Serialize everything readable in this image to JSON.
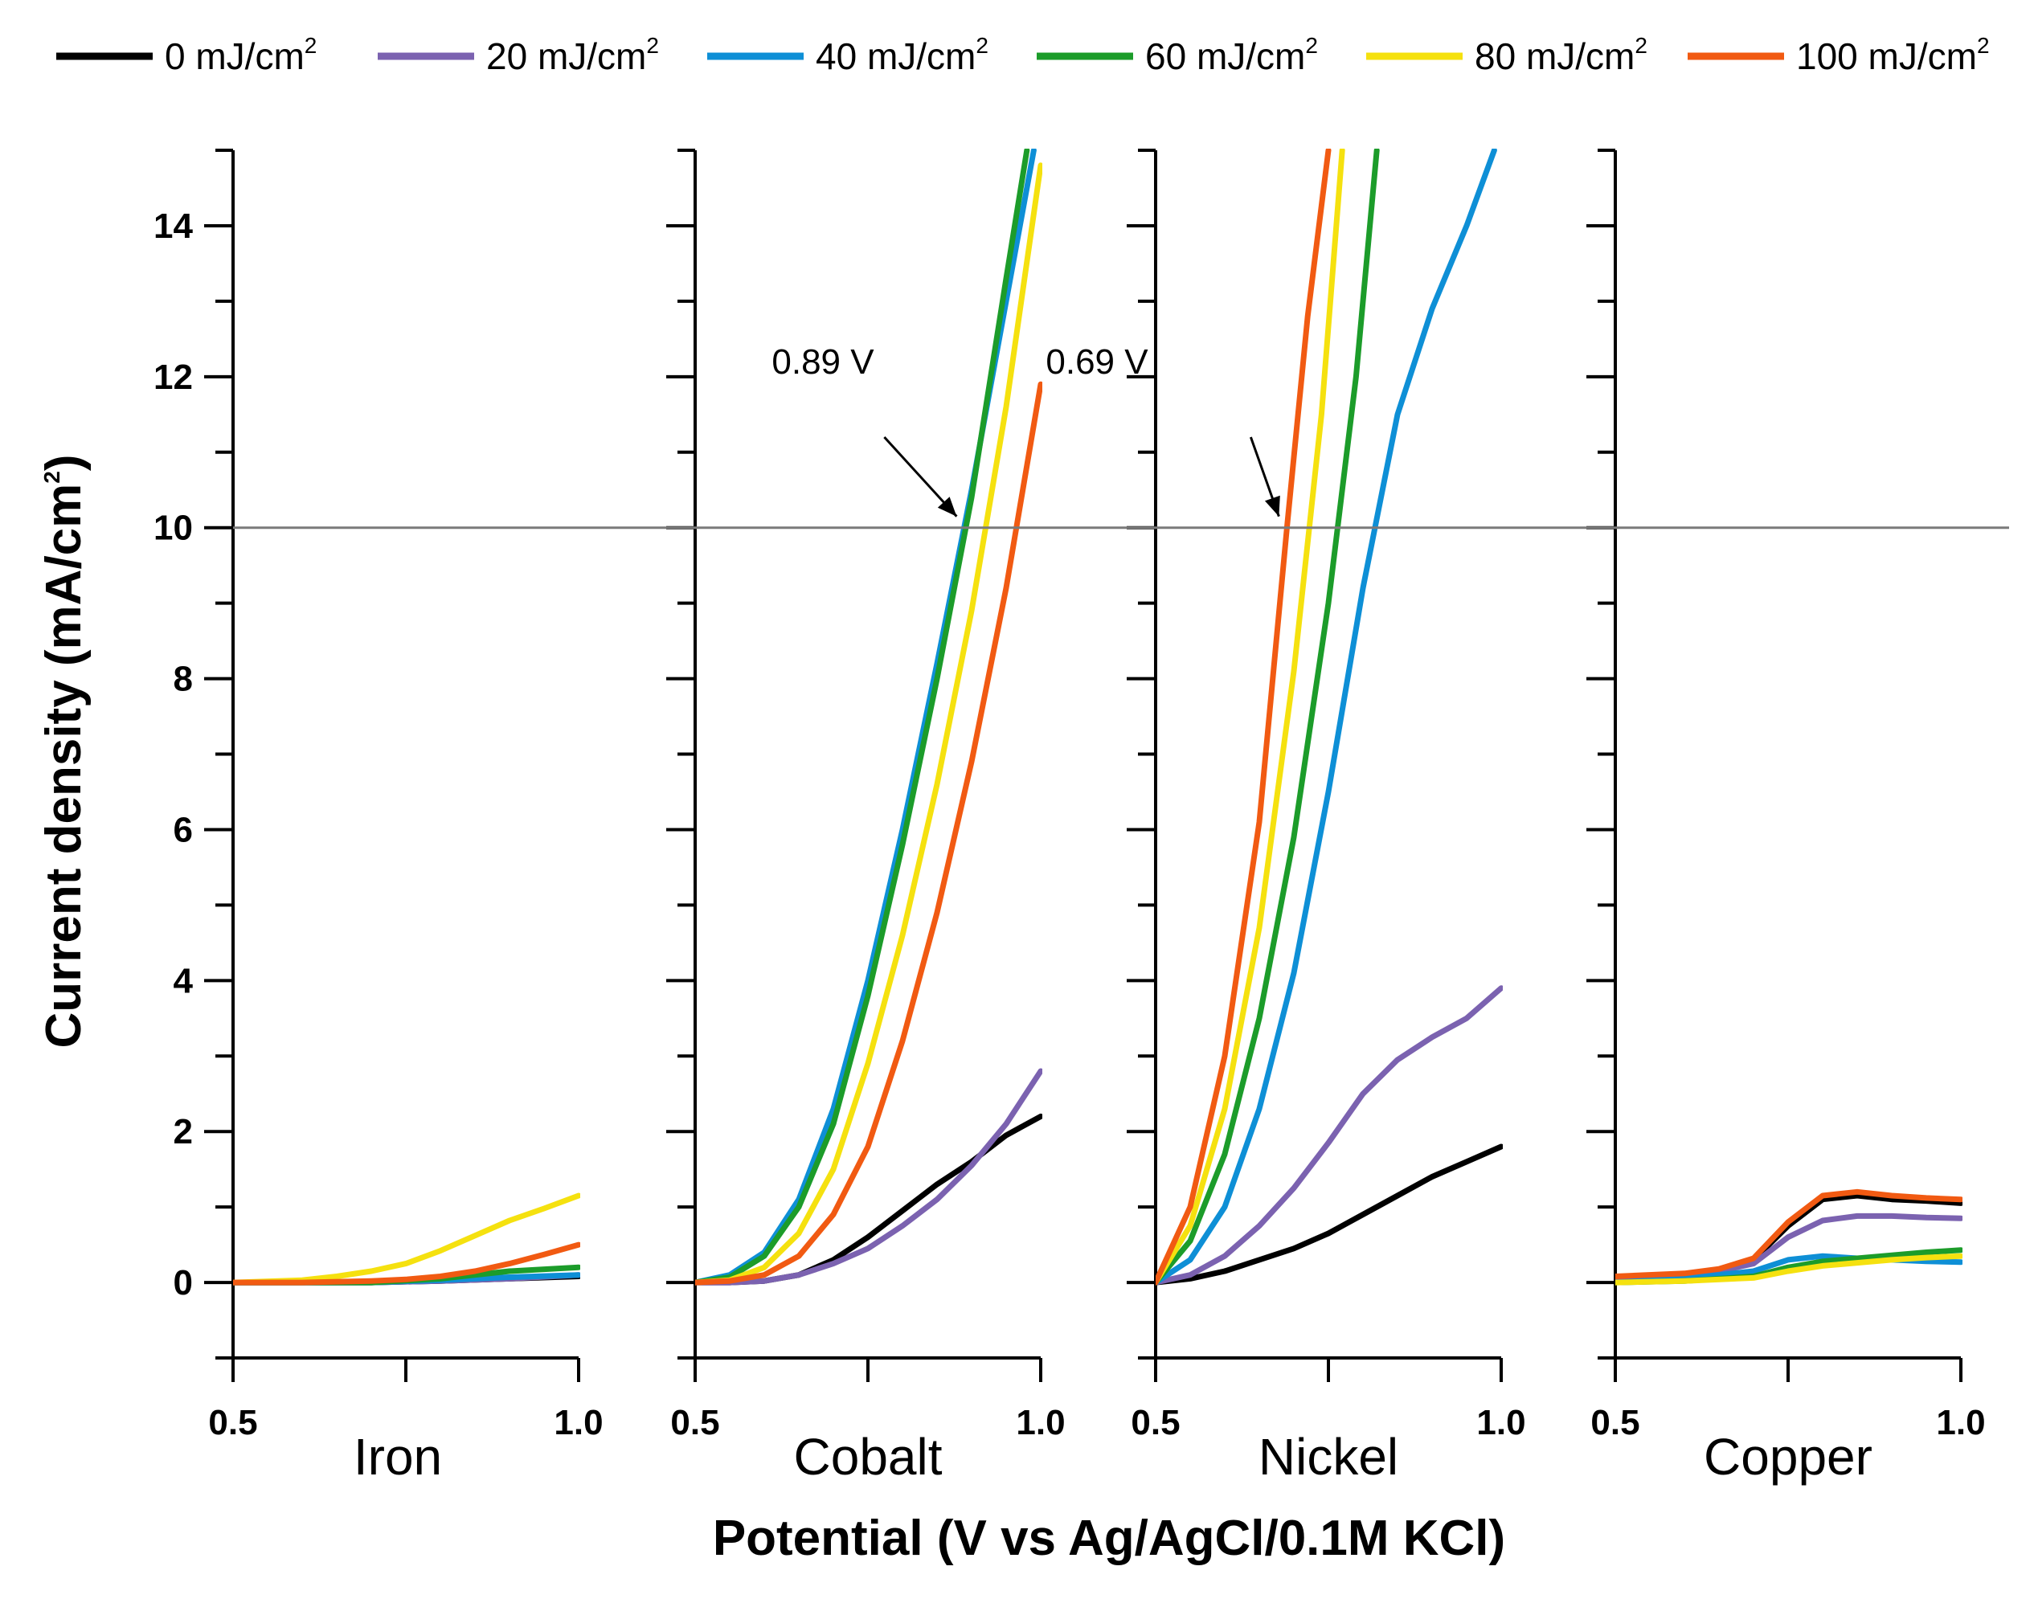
{
  "chart_data": {
    "type": "line",
    "ylabel": "Current density (mA/cm",
    "ylabel_sup": "2",
    "ylabel_close": ")",
    "xlabel": "Potential (V vs Ag/AgCl/0.1M KCl)",
    "ylim": [
      -1,
      15
    ],
    "xlim": [
      0.5,
      1.0
    ],
    "yticks": [
      "0",
      "2",
      "4",
      "6",
      "8",
      "10",
      "12",
      "14"
    ],
    "xtick_left": "0.5",
    "xtick_right": "1.0",
    "reference_line": 10,
    "legend": [
      {
        "name": "0 mJ/cm",
        "sup": "2",
        "color": "#000000"
      },
      {
        "name": "20 mJ/cm",
        "sup": "2",
        "color": "#7b62b0"
      },
      {
        "name": "40 mJ/cm",
        "sup": "2",
        "color": "#0e8fd6"
      },
      {
        "name": "60 mJ/cm",
        "sup": "2",
        "color": "#1c9c2a"
      },
      {
        "name": "80 mJ/cm",
        "sup": "2",
        "color": "#f5e10f"
      },
      {
        "name": "100 mJ/cm",
        "sup": "2",
        "color": "#f15a12"
      }
    ],
    "panels": [
      {
        "name": "Iron",
        "series": [
          {
            "name": "0 mJ/cm2",
            "x": [
              0.5,
              0.6,
              0.7,
              0.8,
              0.9,
              1.0
            ],
            "y": [
              0,
              0,
              0,
              0.02,
              0.05,
              0.08
            ]
          },
          {
            "name": "20 mJ/cm2",
            "x": [
              0.5,
              0.6,
              0.7,
              0.8,
              0.9,
              1.0
            ],
            "y": [
              0,
              0,
              0,
              0.02,
              0.05,
              0.1
            ]
          },
          {
            "name": "40 mJ/cm2",
            "x": [
              0.5,
              0.6,
              0.7,
              0.8,
              0.9,
              1.0
            ],
            "y": [
              0,
              0,
              0,
              0.03,
              0.07,
              0.1
            ]
          },
          {
            "name": "60 mJ/cm2",
            "x": [
              0.5,
              0.6,
              0.7,
              0.8,
              0.9,
              1.0
            ],
            "y": [
              0,
              0,
              0,
              0.05,
              0.15,
              0.2
            ]
          },
          {
            "name": "80 mJ/cm2",
            "x": [
              0.5,
              0.6,
              0.65,
              0.7,
              0.75,
              0.8,
              0.85,
              0.9,
              0.95,
              1.0
            ],
            "y": [
              0,
              0.03,
              0.08,
              0.15,
              0.25,
              0.42,
              0.62,
              0.82,
              0.98,
              1.15
            ]
          },
          {
            "name": "100 mJ/cm2",
            "x": [
              0.5,
              0.6,
              0.7,
              0.75,
              0.8,
              0.85,
              0.9,
              0.95,
              1.0
            ],
            "y": [
              0,
              0,
              0.02,
              0.04,
              0.08,
              0.15,
              0.25,
              0.37,
              0.5
            ]
          }
        ]
      },
      {
        "name": "Cobalt",
        "annotation": {
          "label": "0.89 V",
          "x": 0.89,
          "y": 10
        },
        "series": [
          {
            "name": "0 mJ/cm2",
            "x": [
              0.5,
              0.55,
              0.6,
              0.65,
              0.7,
              0.75,
              0.8,
              0.85,
              0.9,
              0.95,
              1.0
            ],
            "y": [
              0,
              0,
              0.02,
              0.1,
              0.3,
              0.6,
              0.95,
              1.3,
              1.6,
              1.95,
              2.2
            ]
          },
          {
            "name": "20 mJ/cm2",
            "x": [
              0.5,
              0.55,
              0.6,
              0.65,
              0.7,
              0.75,
              0.8,
              0.85,
              0.9,
              0.95,
              1.0
            ],
            "y": [
              0,
              0,
              0.02,
              0.1,
              0.25,
              0.45,
              0.75,
              1.1,
              1.55,
              2.1,
              2.8
            ]
          },
          {
            "name": "40 mJ/cm2",
            "x": [
              0.5,
              0.55,
              0.6,
              0.65,
              0.7,
              0.75,
              0.8,
              0.85,
              0.9,
              0.95,
              0.99
            ],
            "y": [
              0,
              0.1,
              0.4,
              1.1,
              2.3,
              4.0,
              6.0,
              8.2,
              10.5,
              13.0,
              15
            ]
          },
          {
            "name": "60 mJ/cm2",
            "x": [
              0.5,
              0.55,
              0.6,
              0.65,
              0.7,
              0.75,
              0.8,
              0.85,
              0.9,
              0.95,
              0.98
            ],
            "y": [
              0,
              0.07,
              0.35,
              1.0,
              2.1,
              3.8,
              5.8,
              8.0,
              10.4,
              13.3,
              15
            ]
          },
          {
            "name": "80 mJ/cm2",
            "x": [
              0.5,
              0.55,
              0.6,
              0.65,
              0.7,
              0.75,
              0.8,
              0.85,
              0.9,
              0.95,
              1.0
            ],
            "y": [
              0,
              0.03,
              0.2,
              0.65,
              1.5,
              2.9,
              4.6,
              6.6,
              8.9,
              11.6,
              14.8
            ]
          },
          {
            "name": "100 mJ/cm2",
            "x": [
              0.5,
              0.55,
              0.6,
              0.65,
              0.7,
              0.75,
              0.8,
              0.85,
              0.9,
              0.95,
              1.0
            ],
            "y": [
              0,
              0.02,
              0.1,
              0.35,
              0.9,
              1.8,
              3.2,
              4.9,
              6.9,
              9.2,
              11.9
            ]
          }
        ]
      },
      {
        "name": "Nickel",
        "annotation": {
          "label": "0.69 V",
          "x": 0.69,
          "y": 10
        },
        "series": [
          {
            "name": "0 mJ/cm2",
            "x": [
              0.5,
              0.55,
              0.6,
              0.65,
              0.7,
              0.75,
              0.8,
              0.85,
              0.9,
              0.95,
              1.0
            ],
            "y": [
              0,
              0.05,
              0.15,
              0.3,
              0.45,
              0.65,
              0.9,
              1.15,
              1.4,
              1.6,
              1.8
            ]
          },
          {
            "name": "20 mJ/cm2",
            "x": [
              0.5,
              0.55,
              0.6,
              0.65,
              0.7,
              0.75,
              0.8,
              0.85,
              0.9,
              0.95,
              1.0
            ],
            "y": [
              0,
              0.1,
              0.35,
              0.75,
              1.25,
              1.85,
              2.5,
              2.95,
              3.25,
              3.5,
              3.9
            ]
          },
          {
            "name": "40 mJ/cm2",
            "x": [
              0.5,
              0.55,
              0.6,
              0.65,
              0.7,
              0.75,
              0.8,
              0.85,
              0.9,
              0.95,
              0.99
            ],
            "y": [
              0,
              0.3,
              1.0,
              2.3,
              4.1,
              6.5,
              9.2,
              11.5,
              12.9,
              14.0,
              15
            ]
          },
          {
            "name": "60 mJ/cm2",
            "x": [
              0.5,
              0.55,
              0.6,
              0.65,
              0.7,
              0.75,
              0.79,
              0.82
            ],
            "y": [
              0,
              0.55,
              1.7,
              3.5,
              5.9,
              9.0,
              12.0,
              15
            ]
          },
          {
            "name": "80 mJ/cm2",
            "x": [
              0.5,
              0.55,
              0.6,
              0.65,
              0.7,
              0.74,
              0.77
            ],
            "y": [
              0,
              0.75,
              2.3,
              4.7,
              8.1,
              11.5,
              15
            ]
          },
          {
            "name": "100 mJ/cm2",
            "x": [
              0.5,
              0.55,
              0.6,
              0.65,
              0.69,
              0.72,
              0.75
            ],
            "y": [
              0,
              1.0,
              3.0,
              6.1,
              10.0,
              12.8,
              15
            ]
          }
        ]
      },
      {
        "name": "Copper",
        "series": [
          {
            "name": "0 mJ/cm2",
            "x": [
              0.5,
              0.6,
              0.65,
              0.7,
              0.75,
              0.8,
              0.85,
              0.9,
              0.95,
              1.0
            ],
            "y": [
              0.05,
              0.1,
              0.15,
              0.3,
              0.75,
              1.1,
              1.15,
              1.1,
              1.08,
              1.05
            ]
          },
          {
            "name": "20 mJ/cm2",
            "x": [
              0.5,
              0.6,
              0.65,
              0.7,
              0.75,
              0.8,
              0.85,
              0.9,
              0.95,
              1.0
            ],
            "y": [
              0.05,
              0.1,
              0.15,
              0.25,
              0.6,
              0.82,
              0.88,
              0.88,
              0.86,
              0.85
            ]
          },
          {
            "name": "40 mJ/cm2",
            "x": [
              0.5,
              0.6,
              0.7,
              0.75,
              0.8,
              0.85,
              0.9,
              0.95,
              1.0
            ],
            "y": [
              0,
              0.05,
              0.15,
              0.3,
              0.35,
              0.32,
              0.3,
              0.28,
              0.27
            ]
          },
          {
            "name": "60 mJ/cm2",
            "x": [
              0.5,
              0.6,
              0.7,
              0.75,
              0.8,
              0.85,
              0.9,
              0.95,
              1.0
            ],
            "y": [
              0,
              0.02,
              0.08,
              0.2,
              0.28,
              0.32,
              0.36,
              0.4,
              0.43
            ]
          },
          {
            "name": "80 mJ/cm2",
            "x": [
              0.5,
              0.6,
              0.7,
              0.75,
              0.8,
              0.85,
              0.9,
              0.95,
              1.0
            ],
            "y": [
              0,
              0.02,
              0.06,
              0.15,
              0.22,
              0.26,
              0.3,
              0.33,
              0.35
            ]
          },
          {
            "name": "100 mJ/cm2",
            "x": [
              0.5,
              0.6,
              0.65,
              0.7,
              0.75,
              0.8,
              0.85,
              0.9,
              0.95,
              1.0
            ],
            "y": [
              0.08,
              0.12,
              0.18,
              0.32,
              0.8,
              1.15,
              1.2,
              1.15,
              1.12,
              1.1
            ]
          }
        ]
      }
    ]
  }
}
